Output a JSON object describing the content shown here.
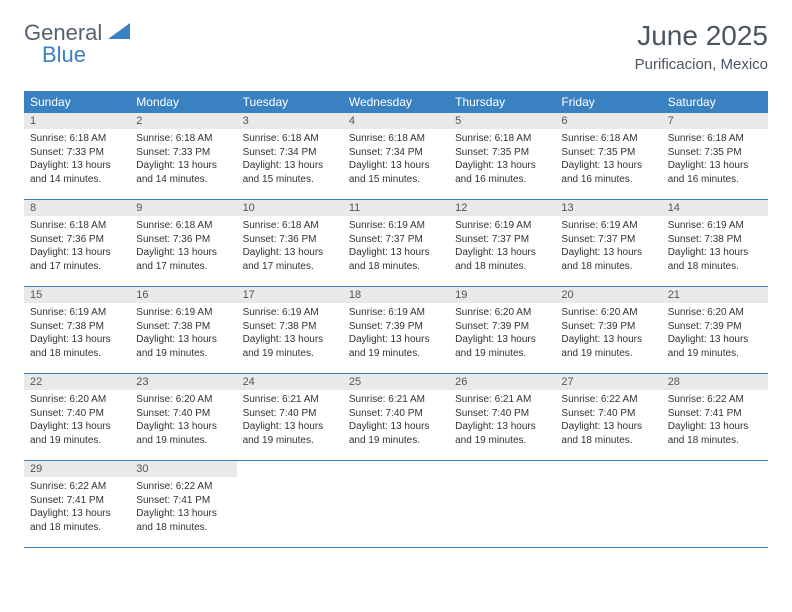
{
  "logo": {
    "general": "General",
    "blue": "Blue"
  },
  "title": "June 2025",
  "location": "Purificacion, Mexico",
  "colors": {
    "header_bg": "#3a81c2",
    "header_text": "#ffffff",
    "day_number_bg": "#e9e9e9",
    "text": "#4a5560",
    "row_border": "#3a81c2"
  },
  "day_headers": [
    "Sunday",
    "Monday",
    "Tuesday",
    "Wednesday",
    "Thursday",
    "Friday",
    "Saturday"
  ],
  "weeks": [
    [
      {
        "n": "1",
        "sunrise": "Sunrise: 6:18 AM",
        "sunset": "Sunset: 7:33 PM",
        "daylight": "Daylight: 13 hours and 14 minutes."
      },
      {
        "n": "2",
        "sunrise": "Sunrise: 6:18 AM",
        "sunset": "Sunset: 7:33 PM",
        "daylight": "Daylight: 13 hours and 14 minutes."
      },
      {
        "n": "3",
        "sunrise": "Sunrise: 6:18 AM",
        "sunset": "Sunset: 7:34 PM",
        "daylight": "Daylight: 13 hours and 15 minutes."
      },
      {
        "n": "4",
        "sunrise": "Sunrise: 6:18 AM",
        "sunset": "Sunset: 7:34 PM",
        "daylight": "Daylight: 13 hours and 15 minutes."
      },
      {
        "n": "5",
        "sunrise": "Sunrise: 6:18 AM",
        "sunset": "Sunset: 7:35 PM",
        "daylight": "Daylight: 13 hours and 16 minutes."
      },
      {
        "n": "6",
        "sunrise": "Sunrise: 6:18 AM",
        "sunset": "Sunset: 7:35 PM",
        "daylight": "Daylight: 13 hours and 16 minutes."
      },
      {
        "n": "7",
        "sunrise": "Sunrise: 6:18 AM",
        "sunset": "Sunset: 7:35 PM",
        "daylight": "Daylight: 13 hours and 16 minutes."
      }
    ],
    [
      {
        "n": "8",
        "sunrise": "Sunrise: 6:18 AM",
        "sunset": "Sunset: 7:36 PM",
        "daylight": "Daylight: 13 hours and 17 minutes."
      },
      {
        "n": "9",
        "sunrise": "Sunrise: 6:18 AM",
        "sunset": "Sunset: 7:36 PM",
        "daylight": "Daylight: 13 hours and 17 minutes."
      },
      {
        "n": "10",
        "sunrise": "Sunrise: 6:18 AM",
        "sunset": "Sunset: 7:36 PM",
        "daylight": "Daylight: 13 hours and 17 minutes."
      },
      {
        "n": "11",
        "sunrise": "Sunrise: 6:19 AM",
        "sunset": "Sunset: 7:37 PM",
        "daylight": "Daylight: 13 hours and 18 minutes."
      },
      {
        "n": "12",
        "sunrise": "Sunrise: 6:19 AM",
        "sunset": "Sunset: 7:37 PM",
        "daylight": "Daylight: 13 hours and 18 minutes."
      },
      {
        "n": "13",
        "sunrise": "Sunrise: 6:19 AM",
        "sunset": "Sunset: 7:37 PM",
        "daylight": "Daylight: 13 hours and 18 minutes."
      },
      {
        "n": "14",
        "sunrise": "Sunrise: 6:19 AM",
        "sunset": "Sunset: 7:38 PM",
        "daylight": "Daylight: 13 hours and 18 minutes."
      }
    ],
    [
      {
        "n": "15",
        "sunrise": "Sunrise: 6:19 AM",
        "sunset": "Sunset: 7:38 PM",
        "daylight": "Daylight: 13 hours and 18 minutes."
      },
      {
        "n": "16",
        "sunrise": "Sunrise: 6:19 AM",
        "sunset": "Sunset: 7:38 PM",
        "daylight": "Daylight: 13 hours and 19 minutes."
      },
      {
        "n": "17",
        "sunrise": "Sunrise: 6:19 AM",
        "sunset": "Sunset: 7:38 PM",
        "daylight": "Daylight: 13 hours and 19 minutes."
      },
      {
        "n": "18",
        "sunrise": "Sunrise: 6:19 AM",
        "sunset": "Sunset: 7:39 PM",
        "daylight": "Daylight: 13 hours and 19 minutes."
      },
      {
        "n": "19",
        "sunrise": "Sunrise: 6:20 AM",
        "sunset": "Sunset: 7:39 PM",
        "daylight": "Daylight: 13 hours and 19 minutes."
      },
      {
        "n": "20",
        "sunrise": "Sunrise: 6:20 AM",
        "sunset": "Sunset: 7:39 PM",
        "daylight": "Daylight: 13 hours and 19 minutes."
      },
      {
        "n": "21",
        "sunrise": "Sunrise: 6:20 AM",
        "sunset": "Sunset: 7:39 PM",
        "daylight": "Daylight: 13 hours and 19 minutes."
      }
    ],
    [
      {
        "n": "22",
        "sunrise": "Sunrise: 6:20 AM",
        "sunset": "Sunset: 7:40 PM",
        "daylight": "Daylight: 13 hours and 19 minutes."
      },
      {
        "n": "23",
        "sunrise": "Sunrise: 6:20 AM",
        "sunset": "Sunset: 7:40 PM",
        "daylight": "Daylight: 13 hours and 19 minutes."
      },
      {
        "n": "24",
        "sunrise": "Sunrise: 6:21 AM",
        "sunset": "Sunset: 7:40 PM",
        "daylight": "Daylight: 13 hours and 19 minutes."
      },
      {
        "n": "25",
        "sunrise": "Sunrise: 6:21 AM",
        "sunset": "Sunset: 7:40 PM",
        "daylight": "Daylight: 13 hours and 19 minutes."
      },
      {
        "n": "26",
        "sunrise": "Sunrise: 6:21 AM",
        "sunset": "Sunset: 7:40 PM",
        "daylight": "Daylight: 13 hours and 19 minutes."
      },
      {
        "n": "27",
        "sunrise": "Sunrise: 6:22 AM",
        "sunset": "Sunset: 7:40 PM",
        "daylight": "Daylight: 13 hours and 18 minutes."
      },
      {
        "n": "28",
        "sunrise": "Sunrise: 6:22 AM",
        "sunset": "Sunset: 7:41 PM",
        "daylight": "Daylight: 13 hours and 18 minutes."
      }
    ],
    [
      {
        "n": "29",
        "sunrise": "Sunrise: 6:22 AM",
        "sunset": "Sunset: 7:41 PM",
        "daylight": "Daylight: 13 hours and 18 minutes."
      },
      {
        "n": "30",
        "sunrise": "Sunrise: 6:22 AM",
        "sunset": "Sunset: 7:41 PM",
        "daylight": "Daylight: 13 hours and 18 minutes."
      },
      {
        "empty": true
      },
      {
        "empty": true
      },
      {
        "empty": true
      },
      {
        "empty": true
      },
      {
        "empty": true
      }
    ]
  ]
}
